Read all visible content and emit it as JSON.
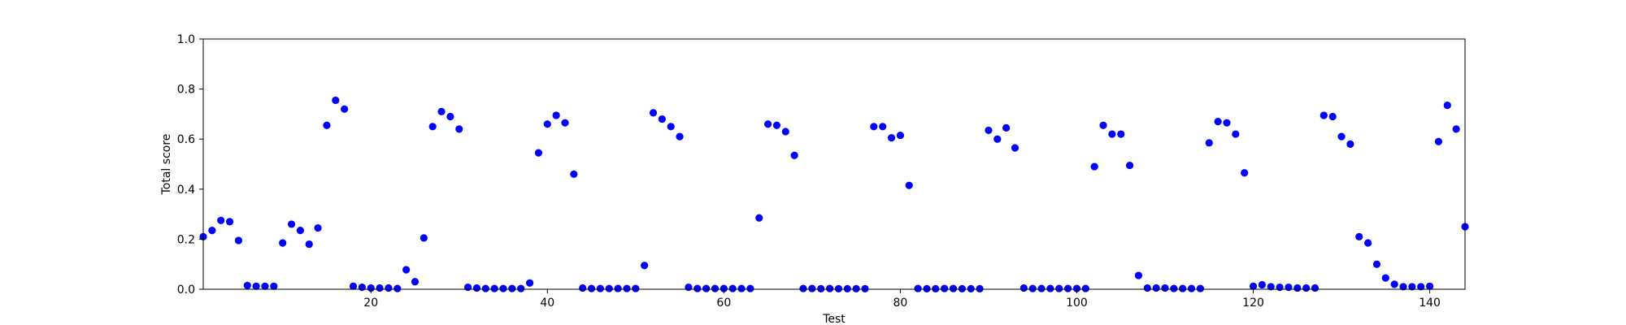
{
  "chart_data": {
    "type": "scatter",
    "xlabel": "Test",
    "ylabel": "Total score",
    "xlim": [
      1,
      144
    ],
    "ylim": [
      0.0,
      1.0
    ],
    "xticks": [
      20,
      40,
      60,
      80,
      100,
      120,
      140
    ],
    "xtick_labels": [
      "20",
      "40",
      "60",
      "80",
      "100",
      "120",
      "140"
    ],
    "yticks": [
      0.0,
      0.2,
      0.4,
      0.6,
      0.8,
      1.0
    ],
    "ytick_labels": [
      "0.0",
      "0.2",
      "0.4",
      "0.6",
      "0.8",
      "1.0"
    ],
    "grid": false,
    "marker_color": "#0000ff",
    "x": [
      1,
      2,
      3,
      4,
      5,
      6,
      7,
      8,
      9,
      10,
      11,
      12,
      13,
      14,
      15,
      16,
      17,
      18,
      19,
      20,
      21,
      22,
      23,
      24,
      25,
      26,
      27,
      28,
      29,
      30,
      31,
      32,
      33,
      34,
      35,
      36,
      37,
      38,
      39,
      40,
      41,
      42,
      43,
      44,
      45,
      46,
      47,
      48,
      49,
      50,
      51,
      52,
      53,
      54,
      55,
      56,
      57,
      58,
      59,
      60,
      61,
      62,
      63,
      64,
      65,
      66,
      67,
      68,
      69,
      70,
      71,
      72,
      73,
      74,
      75,
      76,
      77,
      78,
      79,
      80,
      81,
      82,
      83,
      84,
      85,
      86,
      87,
      88,
      89,
      90,
      91,
      92,
      93,
      94,
      95,
      96,
      97,
      98,
      99,
      100,
      101,
      102,
      103,
      104,
      105,
      106,
      107,
      108,
      109,
      110,
      111,
      112,
      113,
      114,
      115,
      116,
      117,
      118,
      119,
      120,
      121,
      122,
      123,
      124,
      125,
      126,
      127,
      128,
      129,
      130,
      131,
      132,
      133,
      134,
      135,
      136,
      137,
      138,
      139,
      140,
      141,
      142,
      143,
      144
    ],
    "y": [
      0.21,
      0.235,
      0.275,
      0.27,
      0.195,
      0.015,
      0.012,
      0.012,
      0.012,
      0.185,
      0.26,
      0.235,
      0.18,
      0.245,
      0.655,
      0.755,
      0.72,
      0.012,
      0.008,
      0.005,
      0.005,
      0.005,
      0.003,
      0.078,
      0.03,
      0.205,
      0.65,
      0.71,
      0.69,
      0.64,
      0.008,
      0.005,
      0.003,
      0.003,
      0.003,
      0.003,
      0.003,
      0.025,
      0.545,
      0.66,
      0.695,
      0.665,
      0.46,
      0.005,
      0.003,
      0.003,
      0.003,
      0.003,
      0.003,
      0.003,
      0.095,
      0.705,
      0.68,
      0.65,
      0.61,
      0.008,
      0.003,
      0.003,
      0.003,
      0.003,
      0.003,
      0.003,
      0.003,
      0.285,
      0.66,
      0.655,
      0.63,
      0.535,
      0.003,
      0.003,
      0.002,
      0.003,
      0.002,
      0.002,
      0.002,
      0.002,
      0.65,
      0.65,
      0.605,
      0.615,
      0.415,
      0.003,
      0.002,
      0.002,
      0.003,
      0.003,
      0.002,
      0.002,
      0.002,
      0.635,
      0.6,
      0.645,
      0.565,
      0.005,
      0.003,
      0.003,
      0.003,
      0.003,
      0.003,
      0.003,
      0.003,
      0.49,
      0.655,
      0.62,
      0.62,
      0.495,
      0.055,
      0.005,
      0.005,
      0.005,
      0.003,
      0.003,
      0.003,
      0.003,
      0.585,
      0.67,
      0.665,
      0.62,
      0.465,
      0.012,
      0.018,
      0.01,
      0.008,
      0.008,
      0.005,
      0.005,
      0.005,
      0.695,
      0.69,
      0.61,
      0.58,
      0.21,
      0.185,
      0.1,
      0.045,
      0.02,
      0.01,
      0.01,
      0.01,
      0.012,
      0.59,
      0.735,
      0.64,
      0.25
    ]
  }
}
